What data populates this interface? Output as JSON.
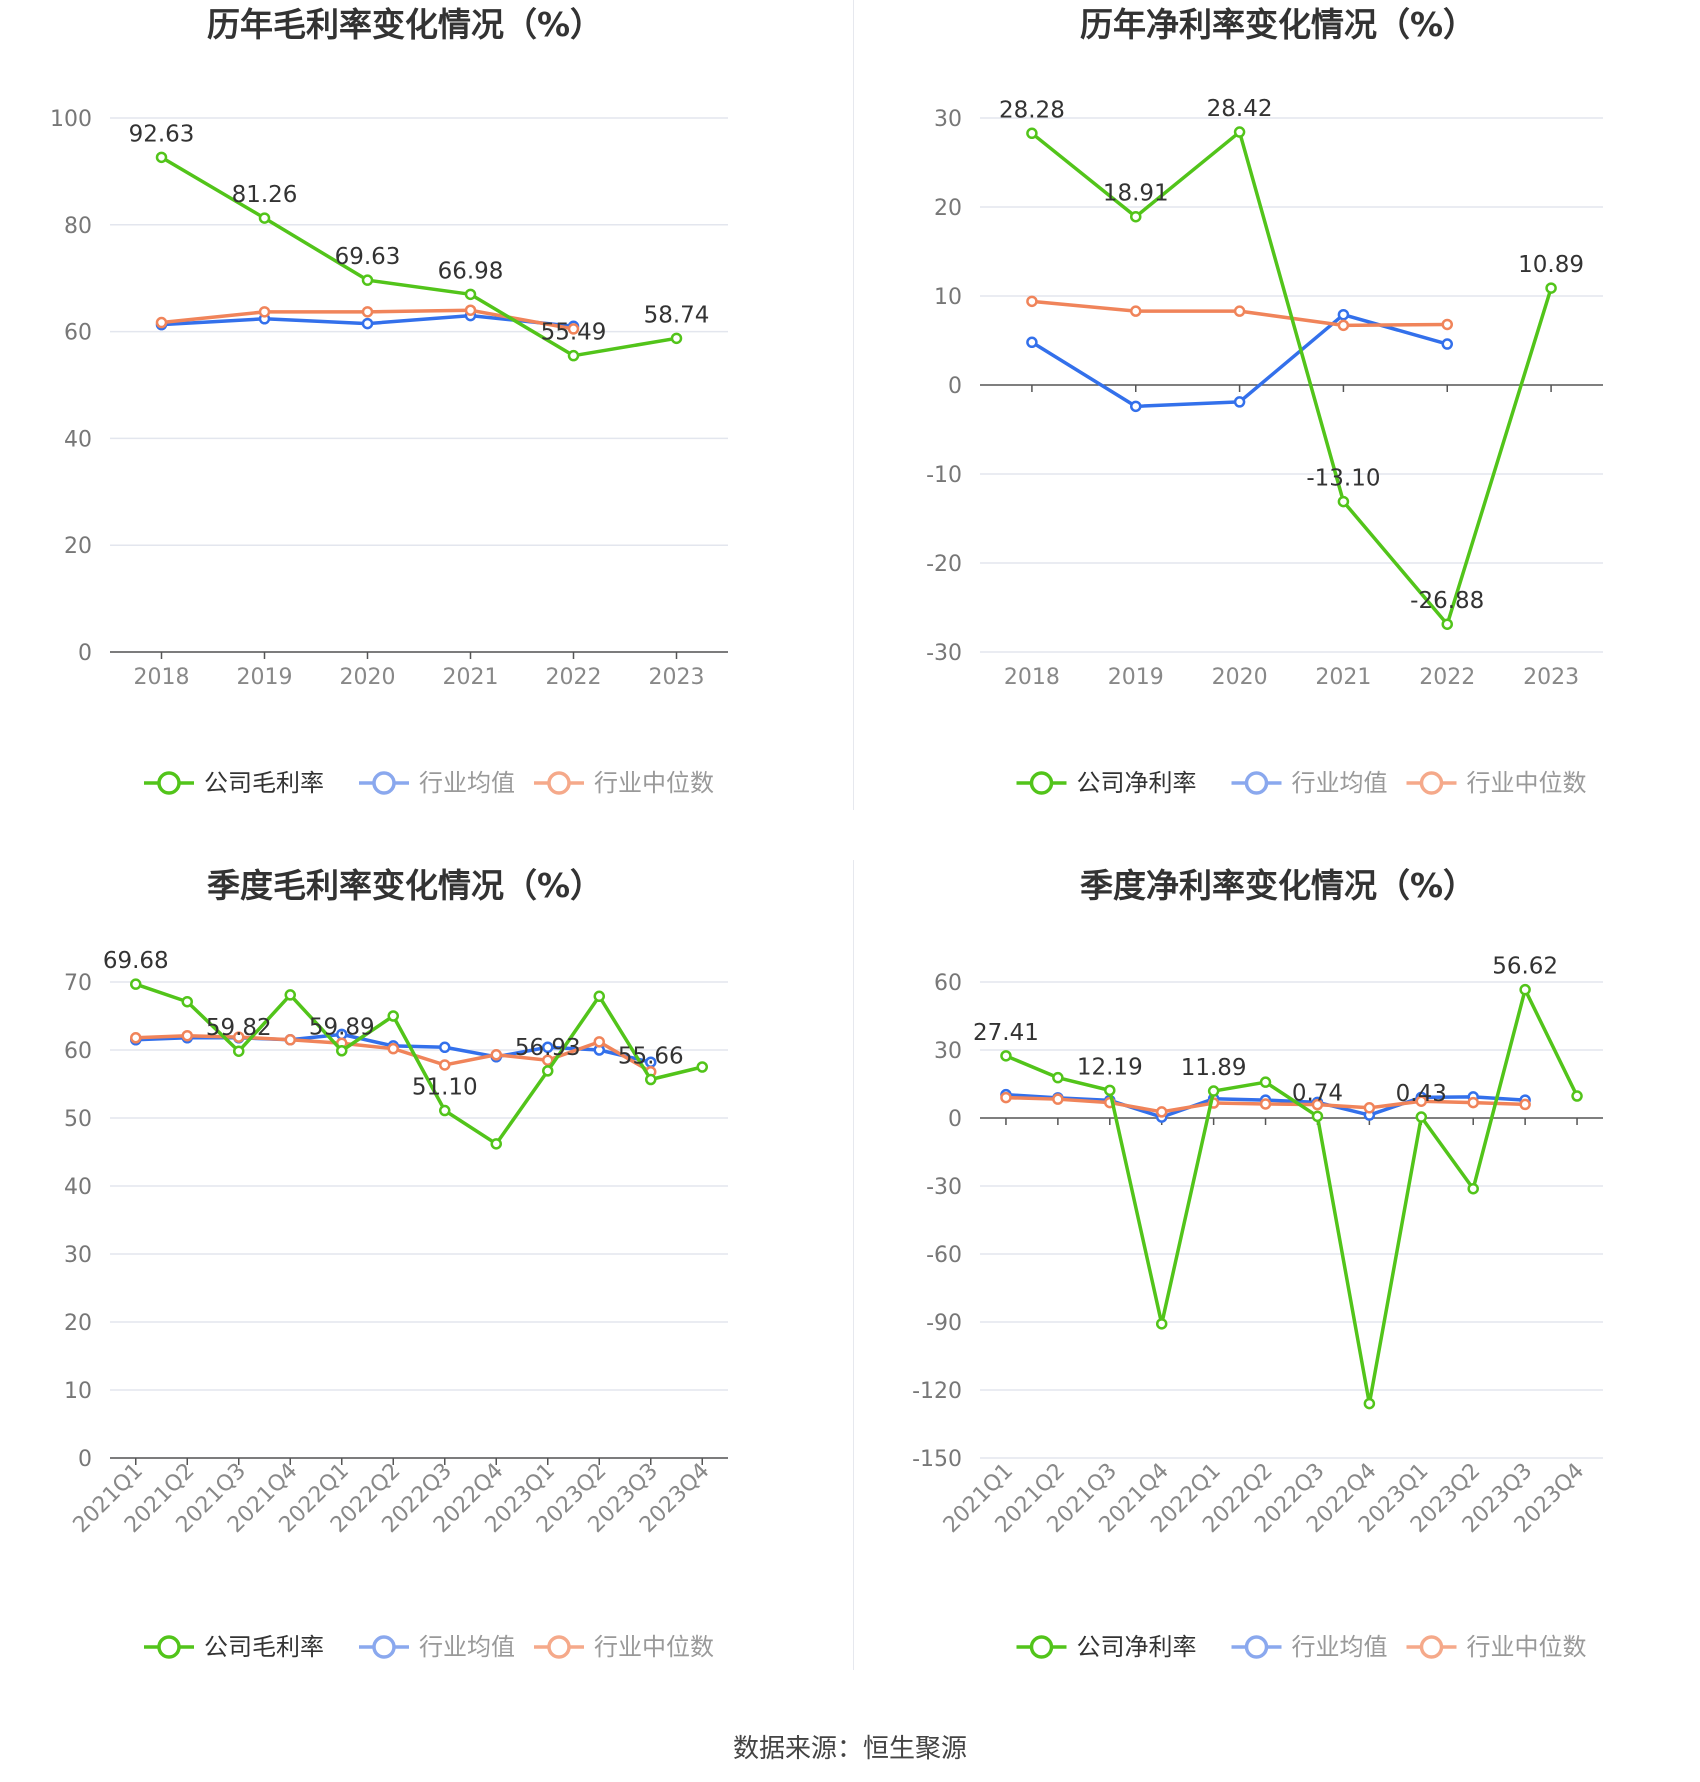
{
  "source_text": "数据来源：恒生聚源",
  "chart_data": [
    {
      "type": "line",
      "title": "历年毛利率变化情况（%）",
      "categories": [
        "2018",
        "2019",
        "2020",
        "2021",
        "2022",
        "2023"
      ],
      "ylim": [
        0,
        100
      ],
      "yticks": [
        0,
        20,
        40,
        60,
        80,
        100
      ],
      "grid": true,
      "legend_position": "bottom",
      "series": [
        {
          "name": "公司毛利率",
          "color": "#52c41a",
          "values": [
            92.63,
            81.26,
            69.63,
            66.98,
            55.49,
            58.74
          ],
          "labels": true
        },
        {
          "name": "行业均值",
          "color": "#3370eb",
          "values": [
            61.3,
            62.4,
            61.5,
            63.0,
            61.0,
            null
          ]
        },
        {
          "name": "行业中位数",
          "color": "#f0845a",
          "values": [
            61.7,
            63.7,
            63.7,
            64.0,
            60.5,
            null
          ]
        }
      ]
    },
    {
      "type": "line",
      "title": "历年净利率变化情况（%）",
      "categories": [
        "2018",
        "2019",
        "2020",
        "2021",
        "2022",
        "2023"
      ],
      "ylim": [
        -30,
        30
      ],
      "yticks": [
        -30,
        -20,
        -10,
        0,
        10,
        20,
        30
      ],
      "grid": true,
      "legend_position": "bottom",
      "series": [
        {
          "name": "公司净利率",
          "color": "#52c41a",
          "values": [
            28.28,
            18.91,
            28.42,
            -13.1,
            -26.88,
            10.89
          ],
          "labels": true
        },
        {
          "name": "行业均值",
          "color": "#3370eb",
          "values": [
            4.8,
            -2.4,
            -1.9,
            7.9,
            4.6,
            null
          ]
        },
        {
          "name": "行业中位数",
          "color": "#f0845a",
          "values": [
            9.4,
            8.3,
            8.3,
            6.7,
            6.8,
            null
          ]
        }
      ]
    },
    {
      "type": "line",
      "title": "季度毛利率变化情况（%）",
      "categories": [
        "2021Q1",
        "2021Q2",
        "2021Q3",
        "2021Q4",
        "2022Q1",
        "2022Q2",
        "2022Q3",
        "2022Q4",
        "2023Q1",
        "2023Q2",
        "2023Q3",
        "2023Q4"
      ],
      "ylim": [
        0,
        70
      ],
      "yticks": [
        0,
        10,
        20,
        30,
        40,
        50,
        60,
        70
      ],
      "grid": true,
      "legend_position": "bottom",
      "series": [
        {
          "name": "公司毛利率",
          "color": "#52c41a",
          "values": [
            69.68,
            67.1,
            59.82,
            68.1,
            59.89,
            65.0,
            51.1,
            46.2,
            56.93,
            67.9,
            55.66,
            57.5
          ],
          "labels": [
            "69.68",
            null,
            "59.82",
            null,
            "59.89",
            null,
            "51.10",
            null,
            "56.93",
            null,
            "55.66",
            null
          ]
        },
        {
          "name": "行业均值",
          "color": "#3370eb",
          "values": [
            61.5,
            61.8,
            61.8,
            61.5,
            62.3,
            60.6,
            60.4,
            59.0,
            60.4,
            60.0,
            58.2,
            null
          ]
        },
        {
          "name": "行业中位数",
          "color": "#f0845a",
          "values": [
            61.8,
            62.1,
            61.9,
            61.5,
            61.0,
            60.2,
            57.8,
            59.3,
            58.5,
            61.2,
            56.8,
            null
          ]
        }
      ]
    },
    {
      "type": "line",
      "title": "季度净利率变化情况（%）",
      "categories": [
        "2021Q1",
        "2021Q2",
        "2021Q3",
        "2021Q4",
        "2022Q1",
        "2022Q2",
        "2022Q3",
        "2022Q4",
        "2023Q1",
        "2023Q2",
        "2023Q3",
        "2023Q4"
      ],
      "ylim": [
        -150,
        60
      ],
      "yticks": [
        -150,
        -120,
        -90,
        -60,
        -30,
        0,
        30,
        60
      ],
      "grid": true,
      "legend_position": "bottom",
      "series": [
        {
          "name": "公司净利率",
          "color": "#52c41a",
          "values": [
            27.41,
            17.8,
            12.19,
            -90.8,
            11.89,
            15.8,
            0.74,
            -126.0,
            0.43,
            -31.2,
            56.62,
            9.7
          ],
          "labels": [
            "27.41",
            null,
            "12.19",
            null,
            "11.89",
            null,
            "0.74",
            null,
            "0.43",
            null,
            "56.62",
            null
          ]
        },
        {
          "name": "行业均值",
          "color": "#3370eb",
          "values": [
            10.3,
            8.9,
            7.8,
            0.4,
            8.5,
            7.9,
            6.9,
            1.3,
            9.1,
            9.3,
            7.9,
            null
          ]
        },
        {
          "name": "行业中位数",
          "color": "#f0845a",
          "values": [
            9.0,
            8.3,
            6.8,
            2.7,
            6.6,
            6.2,
            5.9,
            4.5,
            7.4,
            6.8,
            6.0,
            null
          ]
        }
      ]
    }
  ]
}
